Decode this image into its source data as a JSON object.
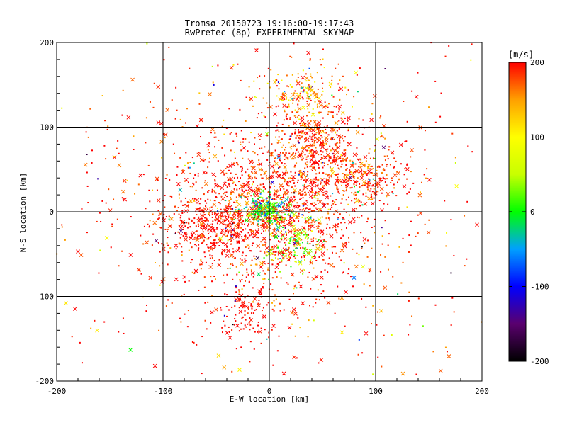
{
  "chart_data": {
    "type": "scatter",
    "title": "Tromsø 20150723 19:16:00-19:17:43",
    "subtitle": "RwPretec (8p) EXPERIMENTAL SKYMAP",
    "xlabel": "E-W location [km]",
    "ylabel": "N-S location [km]",
    "xlim": [
      -200,
      200
    ],
    "ylim": [
      -200,
      200
    ],
    "xticks": [
      -200,
      -100,
      0,
      100,
      200
    ],
    "yticks": [
      -200,
      -100,
      0,
      100,
      200
    ],
    "grid": true,
    "colorbar": {
      "label": "[m/s]",
      "range": [
        -200,
        200
      ],
      "ticks": [
        200,
        100,
        0,
        -100,
        -200
      ],
      "colors": [
        "#000000",
        "#5a006e",
        "#0000ff",
        "#00a0ff",
        "#00ff00",
        "#c8ff00",
        "#ffff00",
        "#ffa000",
        "#ff0000"
      ]
    },
    "markers": [
      "dot",
      "x"
    ],
    "point_count_estimate": 3500,
    "clusters": [
      {
        "x": 0,
        "y": 0,
        "sx": 45,
        "sy": 40,
        "n": 1200,
        "vmean": 190,
        "vsd": 25
      },
      {
        "x": -2,
        "y": 2,
        "sx": 10,
        "sy": 9,
        "n": 220,
        "vmean": 10,
        "vsd": 45
      },
      {
        "x": 25,
        "y": -35,
        "sx": 12,
        "sy": 18,
        "n": 140,
        "vmean": 35,
        "vsd": 40
      },
      {
        "x": 45,
        "y": 80,
        "sx": 18,
        "sy": 25,
        "n": 350,
        "vmean": 190,
        "vsd": 30
      },
      {
        "x": 90,
        "y": 40,
        "sx": 20,
        "sy": 15,
        "n": 220,
        "vmean": 185,
        "vsd": 30
      },
      {
        "x": 30,
        "y": 140,
        "sx": 20,
        "sy": 15,
        "n": 160,
        "vmean": 150,
        "vsd": 40
      },
      {
        "x": -60,
        "y": -20,
        "sx": 22,
        "sy": 15,
        "n": 230,
        "vmean": 200,
        "vsd": 12
      },
      {
        "x": -20,
        "y": -120,
        "sx": 15,
        "sy": 20,
        "n": 120,
        "vmean": 200,
        "vsd": 10
      },
      {
        "x": 0,
        "y": 0,
        "sx": 105,
        "sy": 105,
        "n": 650,
        "vmean": 190,
        "vsd": 30
      },
      {
        "x": 0,
        "y": 0,
        "sx": 150,
        "sy": 150,
        "n": 260,
        "vmean": 160,
        "vsd": 90
      }
    ]
  }
}
